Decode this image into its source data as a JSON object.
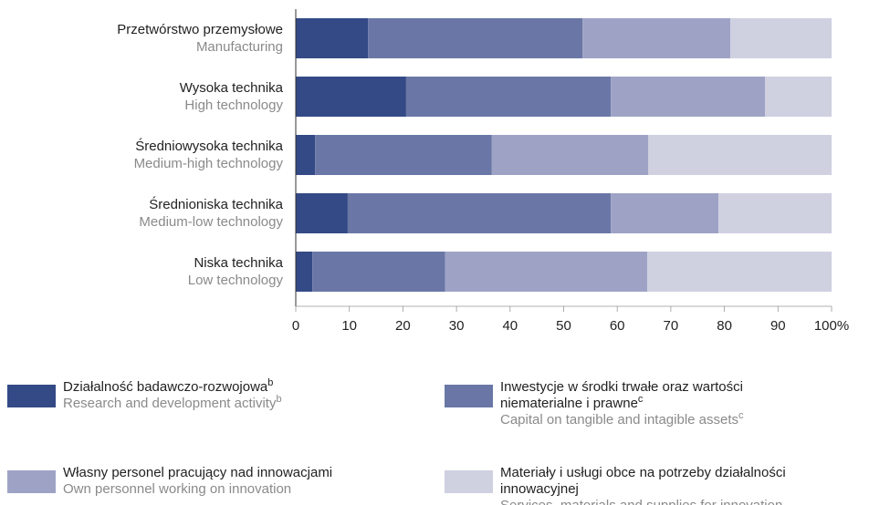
{
  "chart_data": {
    "type": "stacked_bar_horizontal",
    "categories": [
      "Przetwórstwo przemysłowe",
      "Wysoka technika",
      "Średniowysoka technika",
      "Średnioniska technika",
      "Niska technika"
    ],
    "categories_en": [
      "Manufacturing",
      "High technology",
      "Medium-high technology",
      "Medium-low technology",
      "Low technology"
    ],
    "series": [
      {
        "name": "Działalność badawczo-rozwojowa",
        "name_en": "Research and development activity",
        "note": "b",
        "color": "#344a86",
        "values": [
          13.5,
          20.6,
          3.6,
          9.7,
          3.1
        ]
      },
      {
        "name": "Inwestycje w środki trwałe oraz wartości niematerialne i prawne",
        "name_en": "Capital on tangible and intagible assets",
        "note": "c",
        "color": "#6a77a6",
        "values": [
          40.0,
          38.2,
          33.0,
          49.1,
          24.8
        ]
      },
      {
        "name": "Własny personel pracujący nad innowacjami",
        "name_en": "Own personnel working on innovation",
        "color": "#9ea3c6",
        "values": [
          27.6,
          28.8,
          29.2,
          20.1,
          37.7
        ]
      },
      {
        "name": "Materiały i usługi obce na potrzeby działalności innowacyjnej",
        "name_en": "Services, materials and supplies for innovation",
        "color": "#cfd0e0",
        "values": [
          18.9,
          12.4,
          34.2,
          21.1,
          34.4
        ]
      }
    ],
    "xlim": [
      0,
      100
    ],
    "xticks": [
      0,
      10,
      20,
      30,
      40,
      50,
      60,
      70,
      80,
      90,
      {
        "value": 100,
        "label": "100%"
      }
    ]
  }
}
